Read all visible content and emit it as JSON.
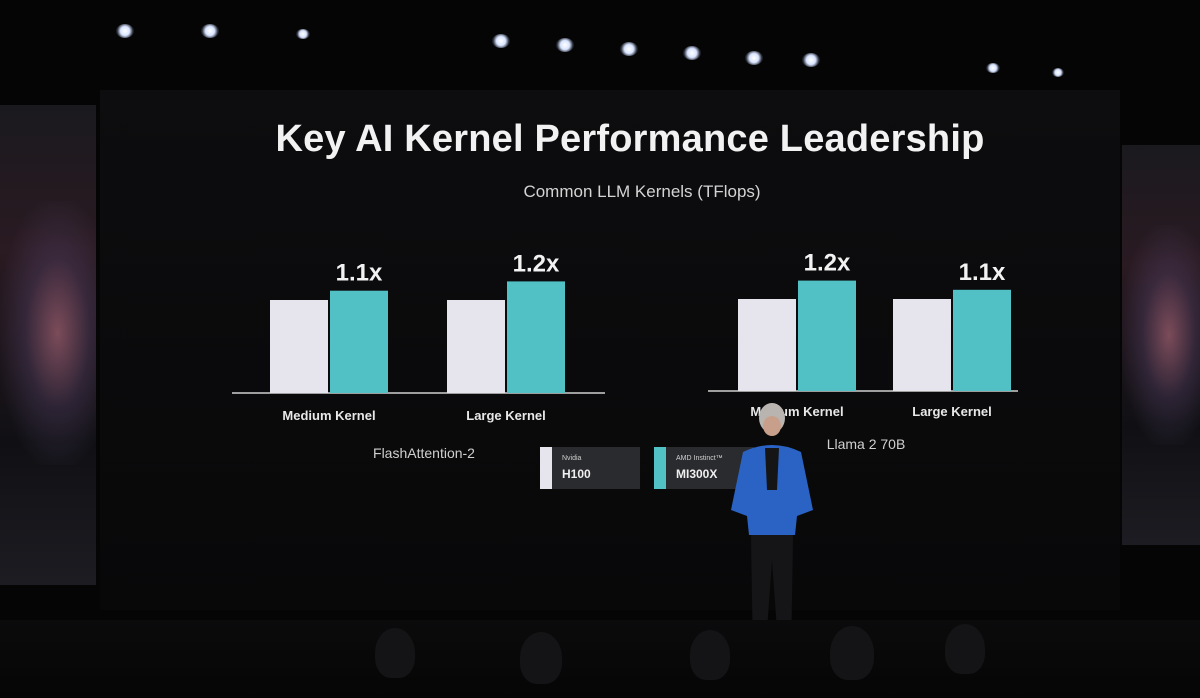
{
  "slide": {
    "title": "Key AI Kernel Performance Leadership",
    "subtitle": "Common LLM Kernels (TFlops)"
  },
  "legend": [
    {
      "brand": "Nvidia",
      "model": "H100",
      "color": "#e6e4ec"
    },
    {
      "brand": "AMD Instinct™",
      "model": "MI300X",
      "color": "#52c1c6"
    }
  ],
  "colors": {
    "h100": "#e6e4ec",
    "mi300x": "#52c1c6",
    "axis": "#cfcfcf"
  },
  "chart_data": [
    {
      "type": "bar",
      "title": "FlashAttention-2",
      "categories": [
        "Medium Kernel",
        "Large Kernel"
      ],
      "series": [
        {
          "name": "H100",
          "values": [
            1.0,
            1.0
          ]
        },
        {
          "name": "MI300X",
          "values": [
            1.1,
            1.2
          ]
        }
      ],
      "data_labels": [
        "1.1x",
        "1.2x"
      ],
      "ylim": [
        0,
        1.4
      ],
      "grid": false
    },
    {
      "type": "bar",
      "title": "Llama 2 70B",
      "categories": [
        "Medium Kernel",
        "Large Kernel"
      ],
      "series": [
        {
          "name": "H100",
          "values": [
            1.0,
            1.0
          ]
        },
        {
          "name": "MI300X",
          "values": [
            1.2,
            1.1
          ]
        }
      ],
      "data_labels": [
        "1.2x",
        "1.1x"
      ],
      "ylim": [
        0,
        1.4
      ],
      "grid": false
    }
  ]
}
